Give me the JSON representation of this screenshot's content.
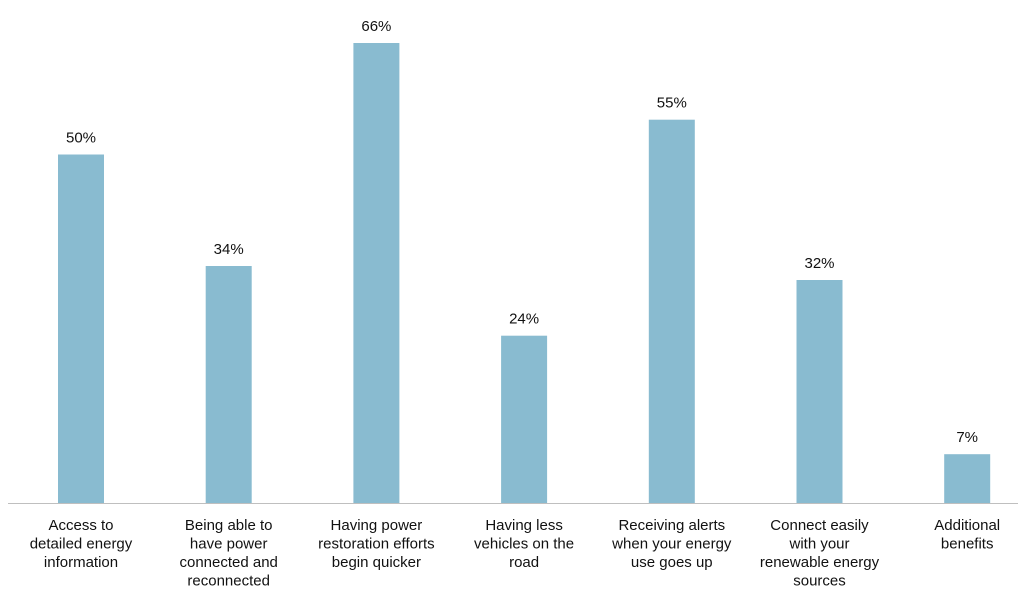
{
  "chart_data": {
    "type": "bar",
    "title": "",
    "xlabel": "",
    "ylabel": "",
    "ylim": [
      0,
      66
    ],
    "grid": false,
    "legend": "none",
    "bar_color": "#89bbd0",
    "axis_color": "#bfbfbf",
    "categories": [
      [
        "Access to",
        "detailed energy",
        "information"
      ],
      [
        "Being able to",
        "have power",
        "connected and",
        "reconnected"
      ],
      [
        "Having power",
        "restoration efforts",
        "begin quicker"
      ],
      [
        "Having less",
        "vehicles on the",
        "road"
      ],
      [
        "Receiving alerts",
        "when your energy",
        "use goes up"
      ],
      [
        "Connect easily",
        "with your",
        "renewable energy",
        "sources"
      ],
      [
        "Additional",
        "benefits"
      ]
    ],
    "values": [
      50,
      34,
      66,
      24,
      55,
      32,
      7
    ],
    "data_labels": [
      "50%",
      "34%",
      "66%",
      "24%",
      "55%",
      "32%",
      "7%"
    ]
  }
}
